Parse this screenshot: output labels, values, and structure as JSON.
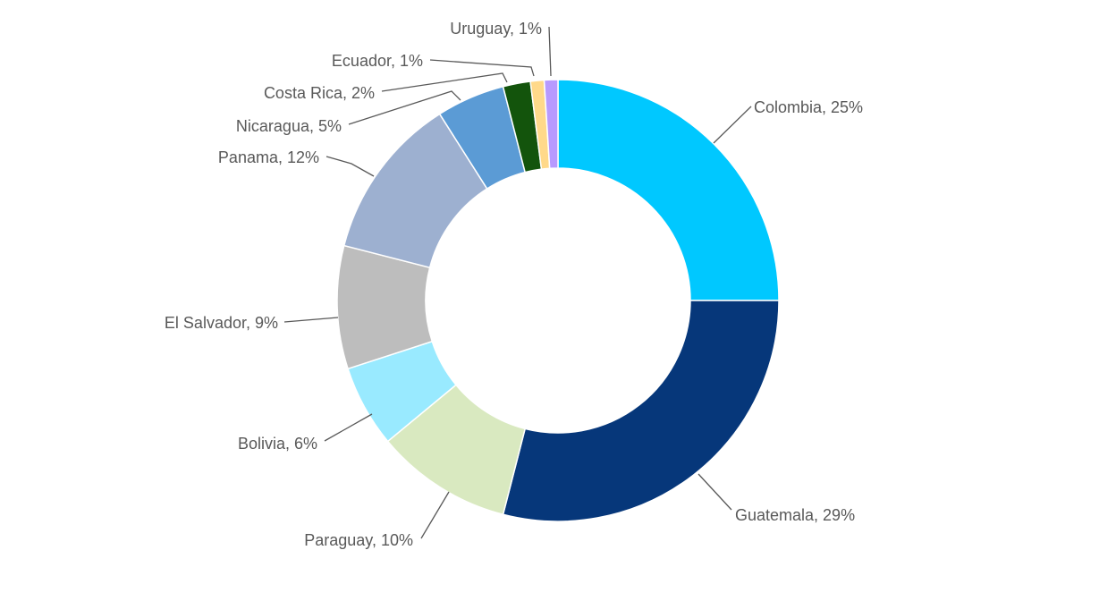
{
  "chart_data": {
    "type": "pie",
    "variant": "doughnut",
    "title": "",
    "legend": "none",
    "slices": [
      {
        "label": "Colombia",
        "value": 25,
        "color": "#00C8FF",
        "text": "Colombia, 25%"
      },
      {
        "label": "Guatemala",
        "value": 29,
        "color": "#06377A",
        "text": "Guatemala, 29%"
      },
      {
        "label": "Paraguay",
        "value": 10,
        "color": "#D9E9C0",
        "text": "Paraguay, 10%"
      },
      {
        "label": "Bolivia",
        "value": 6,
        "color": "#99EAFF",
        "text": "Bolivia, 6%"
      },
      {
        "label": "El Salvador",
        "value": 9,
        "color": "#BDBDBD",
        "text": "El Salvador, 9%"
      },
      {
        "label": "Panama",
        "value": 12,
        "color": "#9DB0D0",
        "text": "Panama, 12%"
      },
      {
        "label": "Nicaragua",
        "value": 5,
        "color": "#5B9BD5",
        "text": "Nicaragua, 5%"
      },
      {
        "label": "Costa Rica",
        "value": 2,
        "color": "#13540C",
        "text": "Costa Rica, 2%"
      },
      {
        "label": "Ecuador",
        "value": 1,
        "color": "#FFD98A",
        "text": "Ecuador, 1%"
      },
      {
        "label": "Uruguay",
        "value": 1,
        "color": "#B79AFF",
        "text": "Uruguay, 1%"
      }
    ]
  }
}
